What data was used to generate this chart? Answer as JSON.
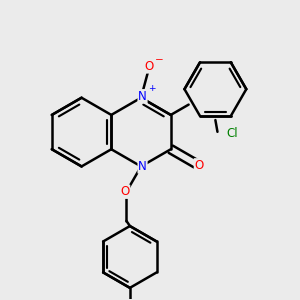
{
  "bg_color": "#ebebeb",
  "bond_color": "#000000",
  "bond_width": 1.8,
  "atom_colors": {
    "N": "#0000ff",
    "O": "#ff0000",
    "Cl": "#008000",
    "C": "#000000"
  },
  "font_size": 8.5,
  "fig_size": [
    3.0,
    3.0
  ],
  "dpi": 100
}
